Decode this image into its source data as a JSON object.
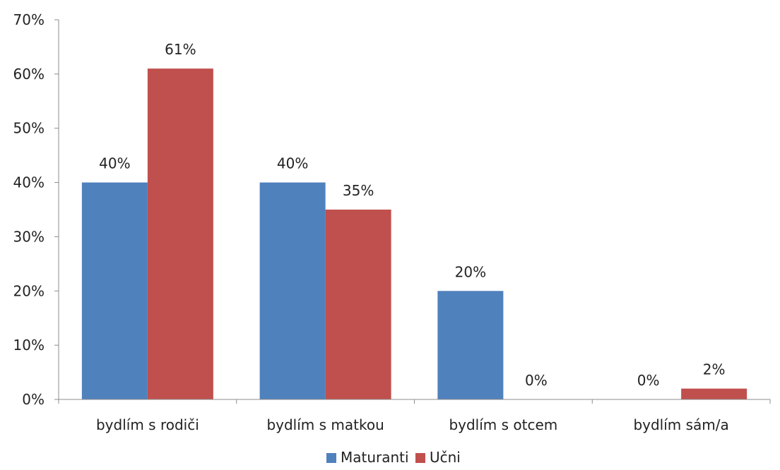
{
  "chart_data": {
    "type": "bar",
    "categories": [
      "bydlím s rodiči",
      "bydlím s matkou",
      "bydlím s otcem",
      "bydlím sám/a"
    ],
    "series": [
      {
        "name": "Maturanti",
        "values": [
          40,
          40,
          20,
          0
        ],
        "labels": [
          "40%",
          "40%",
          "20%",
          "0%"
        ],
        "color": "#4f81bd"
      },
      {
        "name": "Učni",
        "values": [
          61,
          35,
          0,
          2
        ],
        "labels": [
          "61%",
          "35%",
          "0%",
          "2%"
        ],
        "color": "#c0504d"
      }
    ],
    "ylim": [
      0,
      70
    ],
    "yticks": [
      0,
      10,
      20,
      30,
      40,
      50,
      60,
      70
    ],
    "ytick_labels": [
      "0%",
      "10%",
      "20%",
      "30%",
      "40%",
      "50%",
      "60%",
      "70%"
    ],
    "grid": false,
    "legend_position": "bottom",
    "title": "",
    "xlabel": "",
    "ylabel": ""
  }
}
